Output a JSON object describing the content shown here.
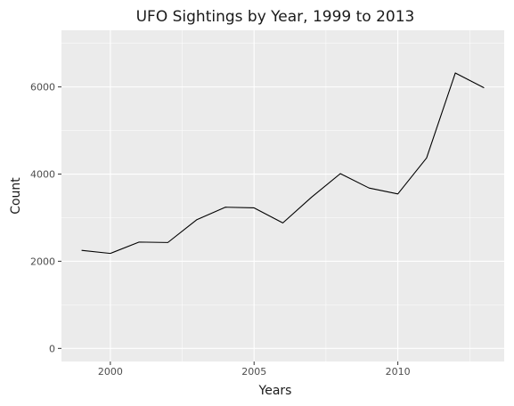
{
  "chart_data": {
    "type": "line",
    "title": "UFO Sightings by Year, 1999 to 2013",
    "xlabel": "Years",
    "ylabel": "Count",
    "x": [
      1999,
      2000,
      2001,
      2002,
      2003,
      2004,
      2005,
      2006,
      2007,
      2008,
      2009,
      2010,
      2011,
      2012,
      2013
    ],
    "series": [
      {
        "values": [
          2250,
          2180,
          2440,
          2430,
          2950,
          3240,
          3225,
          2880,
          3470,
          4010,
          3680,
          3545,
          4370,
          6320,
          5980
        ]
      }
    ],
    "xlim": [
      1998.3,
      2013.7
    ],
    "ylim": [
      -300,
      7300
    ],
    "x_ticks": [
      2000,
      2005,
      2010
    ],
    "x_tick_labels": [
      "2000",
      "2005",
      "2010"
    ],
    "x_minor_ticks": [
      2002.5,
      2007.5,
      2012.5
    ],
    "y_ticks": [
      0,
      2000,
      4000,
      6000
    ],
    "y_tick_labels": [
      "0",
      "2000",
      "4000",
      "6000"
    ],
    "y_minor_ticks": [
      1000,
      3000,
      5000,
      7000
    ],
    "grid": true,
    "legend": "none",
    "colors": {
      "panel_background": "#ebebeb",
      "line": "#000000"
    }
  }
}
